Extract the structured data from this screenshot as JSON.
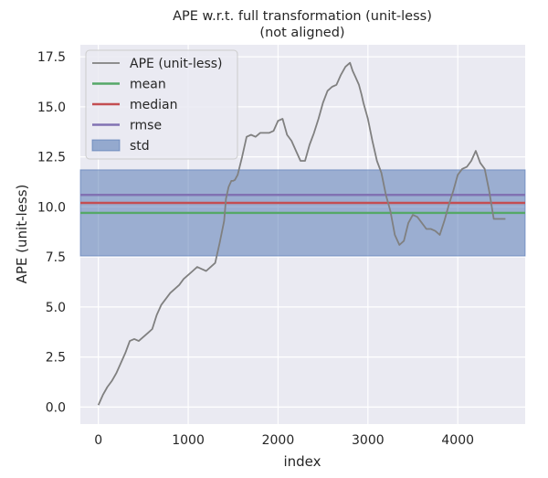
{
  "chart_data": {
    "type": "line",
    "title": "APE w.r.t. full transformation (unit-less)",
    "subtitle": "(not aligned)",
    "xlabel": "index",
    "ylabel": "APE (unit-less)",
    "xlim": [
      -200,
      4750
    ],
    "ylim": [
      -0.85,
      18.1
    ],
    "xticks": [
      0,
      1000,
      2000,
      3000,
      4000
    ],
    "yticks": [
      0.0,
      2.5,
      5.0,
      7.5,
      10.0,
      12.5,
      15.0,
      17.5
    ],
    "xtick_labels": [
      "0",
      "1000",
      "2000",
      "3000",
      "4000"
    ],
    "ytick_labels": [
      "0.0",
      "2.5",
      "5.0",
      "7.5",
      "10.0",
      "12.5",
      "15.0",
      "17.5"
    ],
    "grid": true,
    "legend_position": "top-left",
    "series": [
      {
        "name": "APE (unit-less)",
        "color": "#808080",
        "x": [
          0,
          50,
          100,
          150,
          200,
          250,
          300,
          350,
          400,
          450,
          500,
          550,
          600,
          650,
          700,
          750,
          800,
          850,
          900,
          950,
          1000,
          1050,
          1100,
          1150,
          1200,
          1250,
          1300,
          1350,
          1400,
          1420,
          1450,
          1480,
          1500,
          1520,
          1550,
          1600,
          1650,
          1700,
          1750,
          1800,
          1850,
          1900,
          1950,
          2000,
          2050,
          2100,
          2150,
          2200,
          2250,
          2300,
          2350,
          2400,
          2450,
          2500,
          2550,
          2600,
          2650,
          2700,
          2750,
          2800,
          2830,
          2860,
          2900,
          2930,
          2950,
          3000,
          3050,
          3100,
          3150,
          3200,
          3250,
          3300,
          3350,
          3400,
          3450,
          3500,
          3550,
          3600,
          3650,
          3700,
          3750,
          3800,
          3850,
          3900,
          3950,
          4000,
          4050,
          4100,
          4150,
          4200,
          4250,
          4300,
          4350,
          4400,
          4450,
          4500,
          4530
        ],
        "values": [
          0.1,
          0.6,
          1.0,
          1.3,
          1.7,
          2.2,
          2.7,
          3.3,
          3.4,
          3.3,
          3.5,
          3.7,
          3.9,
          4.6,
          5.1,
          5.4,
          5.7,
          5.9,
          6.1,
          6.4,
          6.6,
          6.8,
          7.0,
          6.9,
          6.8,
          7.0,
          7.2,
          8.2,
          9.3,
          10.4,
          11.0,
          11.3,
          11.3,
          11.35,
          11.6,
          12.5,
          13.5,
          13.6,
          13.5,
          13.7,
          13.7,
          13.7,
          13.8,
          14.3,
          14.4,
          13.6,
          13.3,
          12.8,
          12.3,
          12.3,
          13.1,
          13.7,
          14.4,
          15.2,
          15.8,
          16.0,
          16.1,
          16.6,
          17.0,
          17.2,
          16.8,
          16.5,
          16.1,
          15.6,
          15.2,
          14.4,
          13.3,
          12.3,
          11.7,
          10.6,
          9.8,
          8.6,
          8.1,
          8.3,
          9.2,
          9.6,
          9.5,
          9.2,
          8.9,
          8.9,
          8.8,
          8.6,
          9.3,
          10.1,
          10.8,
          11.6,
          11.9,
          12.0,
          12.3,
          12.8,
          12.2,
          11.9,
          10.8,
          9.4,
          9.4,
          9.4,
          9.4
        ]
      },
      {
        "name": "mean",
        "color": "#55a868",
        "value": 9.7
      },
      {
        "name": "median",
        "color": "#c44e52",
        "value": 10.2
      },
      {
        "name": "rmse",
        "color": "#8172b3",
        "value": 10.6
      },
      {
        "name": "std",
        "color": "#4c72b0",
        "band": [
          7.55,
          11.85
        ]
      }
    ]
  },
  "colors": {
    "plot_background": "#eaeaf2",
    "grid": "#ffffff",
    "text": "#262626"
  }
}
